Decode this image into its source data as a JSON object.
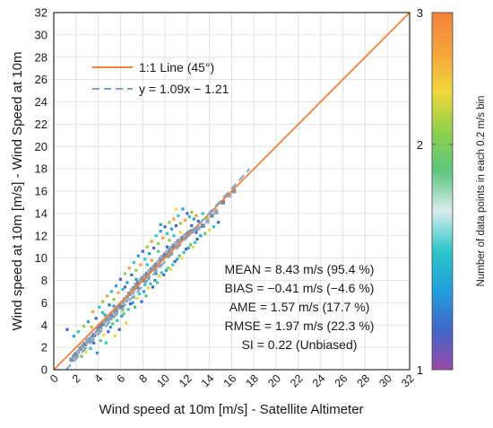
{
  "chart_data": {
    "type": "scatter",
    "xlabel": "Wind speed at 10m [m/s] - Satellite Altimeter",
    "ylabel": "Wind speed at 10m [m/s] - Wind Speed at 10m",
    "xlim": [
      0,
      32
    ],
    "ylim": [
      0,
      32
    ],
    "x_ticks": [
      "0",
      "2",
      "4",
      "6",
      "8",
      "10",
      "12",
      "14",
      "16",
      "18",
      "20",
      "22",
      "24",
      "26",
      "28",
      "30",
      "32"
    ],
    "y_ticks": [
      "0",
      "2",
      "4",
      "6",
      "8",
      "10",
      "12",
      "14",
      "16",
      "18",
      "20",
      "22",
      "24",
      "26",
      "28",
      "30",
      "32"
    ],
    "grid": true,
    "legend_position": "top-left",
    "legend": [
      {
        "label": "1:1 Line (45°)",
        "style": "solid",
        "color": "#f4823a"
      },
      {
        "label": "y = 1.09x − 1.21",
        "style": "dashed",
        "color": "#7fa2c4"
      }
    ],
    "one_to_one": {
      "x": [
        0,
        32
      ],
      "y": [
        0,
        32
      ]
    },
    "fit_line": {
      "slope": 1.09,
      "intercept": -1.21,
      "x_range": [
        1.1,
        17.6
      ]
    },
    "stats": [
      "MEAN = 8.43 m/s (95.4 %)",
      "BIAS = −0.41 m/s (−4.6 %)",
      "AME = 1.57 m/s (17.7 %)",
      "RMSE = 1.97 m/s (22.3 %)",
      "SI = 0.22 (Unbiased)"
    ],
    "colorbar": {
      "label": "Number of data points in each 0.2 m/s bin",
      "scale": "log",
      "range": [
        1,
        3
      ],
      "ticks": [
        "1",
        "2",
        "3"
      ],
      "colors": [
        "#9a4aa8",
        "#3f66c8",
        "#21a0dd",
        "#2cc7c9",
        "#d8ecee",
        "#5cc67e",
        "#8fd14a",
        "#f1d73c",
        "#f5a33a",
        "#f4823a"
      ]
    },
    "dense_points": [
      [
        1.6,
        0.9
      ],
      [
        1.8,
        1.2
      ],
      [
        2.0,
        1.4
      ],
      [
        2.2,
        1.6
      ],
      [
        2.4,
        1.9
      ],
      [
        2.6,
        2.1
      ],
      [
        2.8,
        2.3
      ],
      [
        3.0,
        2.5
      ],
      [
        3.2,
        2.7
      ],
      [
        3.4,
        2.9
      ],
      [
        3.6,
        3.1
      ],
      [
        3.8,
        3.3
      ],
      [
        4.0,
        3.6
      ],
      [
        4.2,
        3.8
      ],
      [
        4.4,
        4.1
      ],
      [
        4.6,
        4.3
      ],
      [
        4.8,
        4.5
      ],
      [
        5.0,
        4.7
      ],
      [
        5.2,
        4.9
      ],
      [
        5.4,
        5.1
      ],
      [
        5.6,
        5.3
      ],
      [
        5.8,
        5.6
      ],
      [
        6.0,
        5.8
      ],
      [
        6.2,
        6.0
      ],
      [
        6.4,
        6.3
      ],
      [
        6.6,
        6.5
      ],
      [
        6.8,
        6.8
      ],
      [
        7.0,
        7.1
      ],
      [
        7.2,
        7.3
      ],
      [
        7.4,
        7.6
      ],
      [
        7.6,
        7.8
      ],
      [
        7.8,
        8.0
      ],
      [
        8.0,
        8.2
      ],
      [
        8.2,
        8.4
      ],
      [
        8.4,
        8.6
      ],
      [
        8.6,
        8.8
      ],
      [
        8.8,
        9.0
      ],
      [
        9.0,
        9.2
      ],
      [
        9.2,
        9.4
      ],
      [
        9.4,
        9.6
      ],
      [
        9.6,
        9.9
      ],
      [
        9.8,
        10.1
      ],
      [
        10.0,
        10.3
      ],
      [
        10.2,
        10.5
      ],
      [
        10.4,
        10.7
      ],
      [
        10.6,
        10.9
      ],
      [
        10.8,
        11.1
      ],
      [
        11.0,
        11.3
      ],
      [
        11.2,
        11.5
      ],
      [
        11.4,
        11.6
      ],
      [
        11.6,
        11.8
      ],
      [
        11.8,
        12.0
      ],
      [
        12.0,
        12.1
      ],
      [
        12.2,
        12.3
      ],
      [
        12.4,
        12.4
      ],
      [
        12.6,
        12.5
      ],
      [
        12.8,
        12.6
      ],
      [
        13.0,
        12.7
      ],
      [
        13.4,
        12.9
      ],
      [
        13.8,
        13.3
      ],
      [
        14.2,
        13.8
      ],
      [
        14.6,
        14.1
      ],
      [
        15.2,
        15.0
      ],
      [
        15.8,
        15.6
      ],
      [
        16.2,
        16.0
      ],
      [
        5.1,
        4.6
      ],
      [
        6.1,
        5.6
      ],
      [
        7.1,
        6.9
      ],
      [
        8.1,
        8.0
      ],
      [
        9.1,
        9.0
      ],
      [
        10.1,
        10.2
      ],
      [
        11.1,
        11.2
      ],
      [
        12.1,
        12.2
      ],
      [
        3.1,
        2.6
      ],
      [
        4.1,
        3.9
      ],
      [
        9.5,
        9.3
      ],
      [
        10.5,
        10.4
      ],
      [
        8.5,
        8.3
      ],
      [
        7.5,
        7.4
      ],
      [
        6.5,
        6.2
      ]
    ],
    "scatter_points": [
      [
        1.2,
        3.6
      ],
      [
        1.8,
        3.0
      ],
      [
        2.2,
        3.4
      ],
      [
        2.5,
        1.2
      ],
      [
        2.7,
        3.9
      ],
      [
        2.9,
        1.6
      ],
      [
        3.1,
        4.3
      ],
      [
        3.3,
        1.9
      ],
      [
        3.5,
        5.2
      ],
      [
        3.6,
        2.4
      ],
      [
        3.8,
        4.6
      ],
      [
        3.9,
        1.5
      ],
      [
        4.1,
        5.6
      ],
      [
        4.2,
        2.6
      ],
      [
        4.4,
        6.1
      ],
      [
        4.5,
        3.1
      ],
      [
        4.6,
        4.9
      ],
      [
        4.7,
        2.4
      ],
      [
        4.8,
        6.6
      ],
      [
        4.9,
        3.4
      ],
      [
        5.0,
        5.8
      ],
      [
        5.1,
        3.8
      ],
      [
        5.2,
        7.0
      ],
      [
        5.3,
        4.1
      ],
      [
        5.4,
        6.3
      ],
      [
        5.5,
        3.0
      ],
      [
        5.6,
        7.5
      ],
      [
        5.7,
        4.4
      ],
      [
        5.8,
        6.9
      ],
      [
        5.9,
        3.6
      ],
      [
        6.0,
        8.1
      ],
      [
        6.1,
        4.8
      ],
      [
        6.2,
        7.2
      ],
      [
        6.3,
        5.0
      ],
      [
        6.4,
        8.6
      ],
      [
        6.5,
        4.2
      ],
      [
        6.6,
        7.8
      ],
      [
        6.7,
        5.4
      ],
      [
        6.8,
        9.1
      ],
      [
        6.9,
        5.9
      ],
      [
        7.0,
        8.5
      ],
      [
        7.1,
        6.0
      ],
      [
        7.2,
        9.6
      ],
      [
        7.3,
        5.6
      ],
      [
        7.4,
        8.9
      ],
      [
        7.5,
        6.4
      ],
      [
        7.6,
        10.2
      ],
      [
        7.7,
        6.8
      ],
      [
        7.8,
        9.4
      ],
      [
        7.9,
        6.1
      ],
      [
        8.0,
        10.6
      ],
      [
        8.1,
        7.0
      ],
      [
        8.2,
        9.9
      ],
      [
        8.3,
        6.6
      ],
      [
        8.4,
        11.0
      ],
      [
        8.5,
        7.3
      ],
      [
        8.6,
        10.4
      ],
      [
        8.7,
        7.7
      ],
      [
        8.8,
        11.5
      ],
      [
        8.9,
        7.4
      ],
      [
        9.0,
        10.9
      ],
      [
        9.1,
        8.0
      ],
      [
        9.2,
        12.0
      ],
      [
        9.3,
        7.8
      ],
      [
        9.4,
        11.3
      ],
      [
        9.5,
        8.4
      ],
      [
        9.6,
        12.4
      ],
      [
        9.7,
        8.7
      ],
      [
        9.8,
        11.8
      ],
      [
        9.9,
        8.5
      ],
      [
        10.0,
        12.8
      ],
      [
        10.1,
        8.9
      ],
      [
        10.2,
        12.2
      ],
      [
        10.3,
        9.1
      ],
      [
        10.4,
        13.2
      ],
      [
        10.5,
        9.0
      ],
      [
        10.6,
        12.6
      ],
      [
        10.7,
        9.4
      ],
      [
        10.8,
        13.5
      ],
      [
        10.9,
        9.7
      ],
      [
        11.0,
        12.9
      ],
      [
        11.1,
        9.9
      ],
      [
        11.2,
        13.8
      ],
      [
        11.3,
        10.2
      ],
      [
        11.4,
        13.1
      ],
      [
        11.5,
        10.0
      ],
      [
        11.6,
        14.4
      ],
      [
        11.7,
        10.5
      ],
      [
        11.8,
        13.4
      ],
      [
        11.9,
        10.8
      ],
      [
        12.0,
        14.0
      ],
      [
        12.1,
        10.9
      ],
      [
        12.2,
        13.7
      ],
      [
        12.3,
        11.2
      ],
      [
        12.4,
        14.1
      ],
      [
        12.5,
        11.0
      ],
      [
        12.6,
        13.5
      ],
      [
        12.7,
        11.4
      ],
      [
        12.8,
        13.8
      ],
      [
        12.9,
        11.7
      ],
      [
        13.0,
        13.3
      ],
      [
        13.2,
        12.0
      ],
      [
        13.4,
        14.0
      ],
      [
        13.6,
        12.2
      ],
      [
        13.8,
        13.6
      ],
      [
        14.0,
        12.5
      ],
      [
        14.2,
        14.2
      ],
      [
        14.4,
        12.8
      ],
      [
        14.6,
        14.3
      ],
      [
        14.8,
        13.2
      ],
      [
        6.4,
        7.4
      ],
      [
        7.4,
        8.1
      ],
      [
        8.4,
        9.4
      ],
      [
        9.4,
        10.6
      ],
      [
        10.4,
        11.6
      ],
      [
        11.4,
        12.3
      ],
      [
        5.4,
        5.7
      ],
      [
        4.4,
        5.1
      ],
      [
        3.4,
        3.8
      ],
      [
        12.4,
        12.9
      ],
      [
        10.2,
        11.0
      ],
      [
        9.2,
        8.6
      ],
      [
        8.2,
        7.6
      ],
      [
        7.2,
        6.5
      ],
      [
        6.2,
        5.3
      ],
      [
        11.0,
        14.4
      ],
      [
        9.6,
        13.0
      ],
      [
        10.8,
        12.0
      ],
      [
        8.8,
        9.8
      ],
      [
        12.8,
        12.3
      ]
    ],
    "dense_counts_relative": [
      0.8,
      0.35,
      0.2,
      0.5
    ],
    "notes": ""
  }
}
